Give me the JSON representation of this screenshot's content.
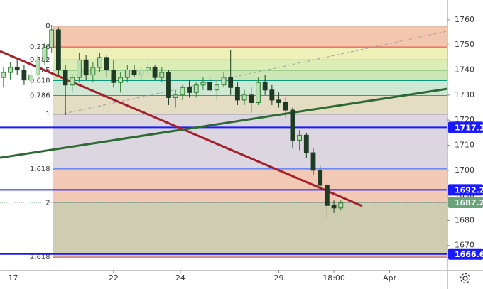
{
  "chart_data": {
    "type": "candlestick",
    "open": [
      1737,
      1739,
      1741,
      1740,
      1736,
      1738,
      1744,
      1749,
      1756,
      1740,
      1734,
      1737,
      1744,
      1738,
      1741,
      1745,
      1740,
      1735,
      1737,
      1740,
      1738,
      1740,
      1741,
      1737,
      1739,
      1729,
      1730,
      1733,
      1731,
      1734,
      1735,
      1732,
      1734,
      1737,
      1733,
      1728,
      1730,
      1727,
      1735,
      1732,
      1728,
      1727,
      1724,
      1712,
      1714,
      1707,
      1700,
      1694,
      1686,
      1685
    ],
    "high": [
      1741,
      1743,
      1744,
      1742,
      1740,
      1746,
      1751,
      1758,
      1757,
      1742,
      1738,
      1747,
      1746,
      1743,
      1747,
      1746,
      1744,
      1739,
      1742,
      1742,
      1741,
      1743,
      1742,
      1741,
      1740,
      1732,
      1734,
      1736,
      1735,
      1737,
      1737,
      1736,
      1739,
      1748,
      1735,
      1732,
      1733,
      1737,
      1738,
      1734,
      1731,
      1729,
      1725,
      1716,
      1715,
      1709,
      1702,
      1695,
      1688,
      1688
    ],
    "low": [
      1733,
      1736,
      1738,
      1734,
      1733,
      1737,
      1742,
      1747,
      1738,
      1722,
      1731,
      1735,
      1736,
      1735,
      1739,
      1737,
      1733,
      1731,
      1735,
      1737,
      1736,
      1738,
      1736,
      1735,
      1726,
      1725,
      1728,
      1729,
      1729,
      1732,
      1731,
      1728,
      1733,
      1730,
      1726,
      1726,
      1723,
      1726,
      1730,
      1726,
      1725,
      1721,
      1709,
      1708,
      1705,
      1698,
      1692,
      1681,
      1683,
      1684
    ],
    "close": [
      1739,
      1741,
      1740,
      1736,
      1738,
      1744,
      1749,
      1756,
      1740,
      1734,
      1737,
      1744,
      1738,
      1741,
      1745,
      1740,
      1735,
      1737,
      1740,
      1738,
      1740,
      1741,
      1737,
      1739,
      1729,
      1730,
      1733,
      1731,
      1734,
      1735,
      1732,
      1734,
      1737,
      1733,
      1728,
      1730,
      1727,
      1735,
      1732,
      1728,
      1727,
      1724,
      1712,
      1714,
      1707,
      1700,
      1694,
      1686,
      1685,
      1687
    ],
    "up_color": "#2e7d32",
    "down_color": "#1e3b24",
    "xlim": [
      -0.5,
      64.5
    ],
    "xticks": [
      {
        "value": 1.4,
        "label": "17"
      },
      {
        "value": 16,
        "label": "22"
      },
      {
        "value": 25.7,
        "label": "24"
      },
      {
        "value": 40,
        "label": "29"
      },
      {
        "value": 48,
        "label": "18:00"
      },
      {
        "value": 56.1,
        "label": "Apr"
      }
    ],
    "ylim": [
      1660.3,
      1767.9
    ],
    "yticks": [
      1670,
      1680,
      1690,
      1700,
      1710,
      1720,
      1730,
      1740,
      1750,
      1760
    ],
    "grid": false,
    "fib": {
      "start": 1757.5,
      "end": 1722.3,
      "x_start": 7.2,
      "levels": [
        0,
        0.236,
        0.382,
        0.5,
        0.618,
        0.786,
        1,
        1.618,
        2,
        2.618
      ],
      "line_colors": [
        "#9e9e9e",
        "#e53935",
        "#8bc34a",
        "#43a047",
        "#089981",
        "#00acc1",
        "#9e9e9e",
        "#2962ff",
        "#9e9e9e",
        "#e53935"
      ],
      "band_colors": [
        "#f3c6ae",
        "#eef0b8",
        "#dcedb6",
        "#cde6b5",
        "#cfe8d4",
        "#e5dcc4",
        "#dcd6e0",
        "#f2c9b5",
        "#cfcdb1"
      ]
    },
    "hlines": [
      {
        "value": 1717.1,
        "color": "#1a1aff"
      },
      {
        "value": 1692.2,
        "color": "#1a1aff"
      },
      {
        "value": 1666.6,
        "color": "#1a1aff"
      }
    ],
    "last_price": 1687.2,
    "last_price_color": "#6aa37a",
    "trendlines": [
      {
        "points": [
          [
            -0.5,
            1747.5
          ],
          [
            52.1,
            1685.8
          ]
        ],
        "color": "#a3202d",
        "width": 3,
        "dashed": false
      },
      {
        "points": [
          [
            -0.5,
            1705.0
          ],
          [
            64.5,
            1732.5
          ]
        ],
        "color": "#2e6b34",
        "width": 3,
        "dashed": false
      },
      {
        "points": [
          [
            8.8,
            1722.6
          ],
          [
            64.5,
            1755.5
          ]
        ],
        "color": "#9e9e9e",
        "width": 1,
        "dashed": true
      }
    ]
  }
}
